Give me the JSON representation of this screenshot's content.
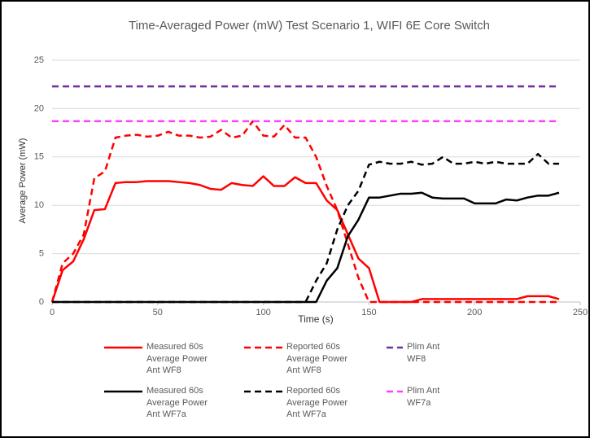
{
  "chart_data": {
    "type": "line",
    "title": "Time-Averaged Power (mW) Test Scenario 1, WIFI 6E Core Switch",
    "x_label": "Time (s)",
    "y_label": "Average Power (mW)",
    "x": [
      0,
      5,
      10,
      15,
      20,
      25,
      30,
      35,
      40,
      45,
      50,
      55,
      60,
      65,
      70,
      75,
      80,
      85,
      90,
      95,
      100,
      105,
      110,
      115,
      120,
      125,
      130,
      135,
      140,
      145,
      150,
      155,
      160,
      165,
      170,
      175,
      180,
      185,
      190,
      195,
      200,
      205,
      210,
      215,
      220,
      225,
      230,
      235,
      240
    ],
    "series": [
      {
        "name": "Measured 60s Average Power Ant WF8",
        "color": "#ff0000",
        "dashed": false,
        "values": [
          0,
          3.3,
          4.2,
          6.5,
          9.5,
          9.6,
          12.3,
          12.4,
          12.4,
          12.5,
          12.5,
          12.5,
          12.4,
          12.3,
          12.1,
          11.7,
          11.6,
          12.3,
          12.1,
          12.0,
          13.0,
          12.0,
          12.0,
          12.9,
          12.3,
          12.3,
          10.5,
          9.5,
          7.0,
          4.5,
          3.5,
          0,
          0,
          0,
          0,
          0.3,
          0.3,
          0.3,
          0.3,
          0.3,
          0.3,
          0.3,
          0.3,
          0.3,
          0.3,
          0.6,
          0.6,
          0.6,
          0.3
        ]
      },
      {
        "name": "Reported 60s Average Power Ant WF8",
        "color": "#ff0000",
        "dashed": true,
        "values": [
          0,
          4,
          5,
          7,
          12.8,
          13.5,
          17,
          17.2,
          17.3,
          17.1,
          17.2,
          17.6,
          17.2,
          17.2,
          17.0,
          17.1,
          17.8,
          17.0,
          17.2,
          18.7,
          17.2,
          17.1,
          18.3,
          17.0,
          17.0,
          15.0,
          12.0,
          9.5,
          6.0,
          2.5,
          0,
          0,
          0,
          0,
          0,
          0,
          0,
          0,
          0,
          0,
          0,
          0,
          0,
          0,
          0,
          0,
          0,
          0,
          0
        ]
      },
      {
        "name": "Plim Ant WF8",
        "color": "#7030a0",
        "dashed": true,
        "x": [
          0,
          240
        ],
        "values": [
          22.3,
          22.3
        ]
      },
      {
        "name": "Measured 60s Average Power Ant WF7a",
        "color": "#000000",
        "dashed": false,
        "values": [
          0,
          0,
          0,
          0,
          0,
          0,
          0,
          0,
          0,
          0,
          0,
          0,
          0,
          0,
          0,
          0,
          0,
          0,
          0,
          0,
          0,
          0,
          0,
          0,
          0,
          0,
          2.2,
          3.5,
          6.8,
          8.5,
          10.8,
          10.8,
          11.0,
          11.2,
          11.2,
          11.3,
          10.8,
          10.7,
          10.7,
          10.7,
          10.2,
          10.2,
          10.2,
          10.6,
          10.5,
          10.8,
          11.0,
          11.0,
          11.3
        ]
      },
      {
        "name": "Reported 60s Average Power Ant WF7a",
        "color": "#000000",
        "dashed": true,
        "values": [
          0,
          0,
          0,
          0,
          0,
          0,
          0,
          0,
          0,
          0,
          0,
          0,
          0,
          0,
          0,
          0,
          0,
          0,
          0,
          0,
          0,
          0,
          0,
          0,
          0,
          2.2,
          4,
          7.5,
          10,
          11.5,
          14.2,
          14.5,
          14.3,
          14.3,
          14.5,
          14.2,
          14.3,
          15.0,
          14.3,
          14.3,
          14.5,
          14.3,
          14.5,
          14.3,
          14.3,
          14.3,
          15.3,
          14.3,
          14.3
        ]
      },
      {
        "name": "Plim Ant WF7a",
        "color": "#ff40ff",
        "dashed": true,
        "x": [
          0,
          240
        ],
        "values": [
          18.7,
          18.7
        ]
      }
    ],
    "xlim": [
      0,
      250
    ],
    "xticks": [
      0,
      50,
      100,
      150,
      200,
      250
    ],
    "ylim": [
      0,
      25
    ],
    "yticks": [
      0,
      5,
      10,
      15,
      20,
      25
    ],
    "grid": true,
    "legend": "bottom"
  }
}
